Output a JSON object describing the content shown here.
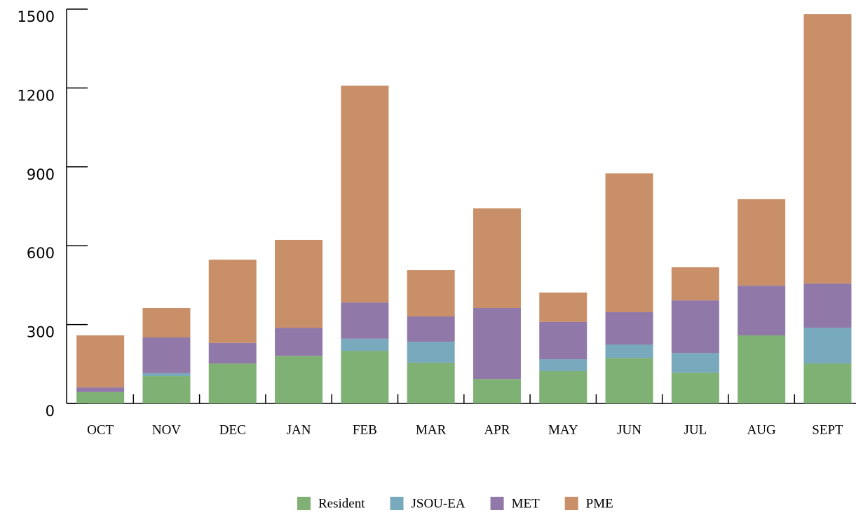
{
  "chart_data": {
    "type": "stacked_bar",
    "categories": [
      "OCT",
      "NOV",
      "DEC",
      "JAN",
      "FEB",
      "MAR",
      "APR",
      "MAY",
      "JUN",
      "JUL",
      "AUG",
      "SEPT"
    ],
    "series": [
      {
        "name": "Resident",
        "color": "#7fb174",
        "values": [
          43,
          104,
          152,
          181,
          200,
          155,
          93,
          123,
          173,
          117,
          259,
          152
        ]
      },
      {
        "name": "JSOU-EA",
        "color": "#78a9bc",
        "values": [
          0,
          11,
          0,
          0,
          46,
          80,
          0,
          45,
          51,
          75,
          0,
          136
        ]
      },
      {
        "name": "MET",
        "color": "#9079a8",
        "values": [
          18,
          136,
          78,
          107,
          138,
          96,
          270,
          142,
          123,
          200,
          189,
          168
        ]
      },
      {
        "name": "PME",
        "color": "#c98f68",
        "values": [
          198,
          112,
          317,
          334,
          825,
          176,
          379,
          112,
          528,
          126,
          329,
          1025
        ]
      }
    ],
    "ylim": [
      0,
      1500
    ],
    "yticks": [
      0,
      300,
      600,
      900,
      1200,
      1500
    ],
    "legend": "bottom"
  }
}
